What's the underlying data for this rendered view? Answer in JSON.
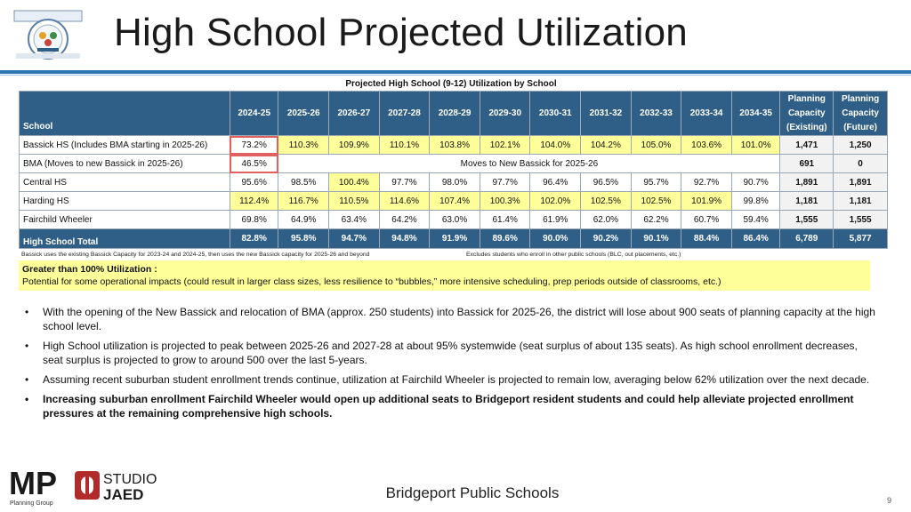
{
  "header": {
    "title": "High School Projected Utilization"
  },
  "table": {
    "caption": "Projected High School (9-12) Utilization by School",
    "school_header": "School",
    "years": [
      "2024-25",
      "2025-26",
      "2026-27",
      "2027-28",
      "2028-29",
      "2029-30",
      "2030-31",
      "2031-32",
      "2032-33",
      "2033-34",
      "2034-35"
    ],
    "cap_existing": [
      "Planning",
      "Capacity",
      "(Existing)"
    ],
    "cap_future": [
      "Planning",
      "Capacity",
      "(Future)"
    ],
    "rows": [
      {
        "name": "Bassick HS (Includes BMA starting in 2025-26)",
        "values": [
          "73.2%",
          "110.3%",
          "109.9%",
          "110.1%",
          "103.8%",
          "102.1%",
          "104.0%",
          "104.2%",
          "105.0%",
          "103.6%",
          "101.0%"
        ],
        "cap_existing": "1,471",
        "cap_future": "1,250"
      },
      {
        "name": "BMA (Moves to new Bassick in 2025-26)",
        "first": "46.5%",
        "merged": "Moves to New Bassick for 2025-26",
        "cap_existing": "691",
        "cap_future": "0"
      },
      {
        "name": "Central HS",
        "values": [
          "95.6%",
          "98.5%",
          "100.4%",
          "97.7%",
          "98.0%",
          "97.7%",
          "96.4%",
          "96.5%",
          "95.7%",
          "92.7%",
          "90.7%"
        ],
        "cap_existing": "1,891",
        "cap_future": "1,891"
      },
      {
        "name": "Harding HS",
        "values": [
          "112.4%",
          "116.7%",
          "110.5%",
          "114.6%",
          "107.4%",
          "100.3%",
          "102.0%",
          "102.5%",
          "102.5%",
          "101.9%",
          "99.8%"
        ],
        "cap_existing": "1,181",
        "cap_future": "1,181"
      },
      {
        "name": "Fairchild Wheeler",
        "values": [
          "69.8%",
          "64.9%",
          "63.4%",
          "64.2%",
          "63.0%",
          "61.4%",
          "61.9%",
          "62.0%",
          "62.2%",
          "60.7%",
          "59.4%"
        ],
        "cap_existing": "1,555",
        "cap_future": "1,555"
      }
    ],
    "total": {
      "name": "High School Total",
      "values": [
        "82.8%",
        "95.8%",
        "94.7%",
        "94.8%",
        "91.9%",
        "89.6%",
        "90.0%",
        "90.2%",
        "90.1%",
        "88.4%",
        "86.4%"
      ],
      "cap_existing": "6,789",
      "cap_future": "5,877"
    }
  },
  "footnotes": {
    "left": "Bassick uses the existing Bassick Capacity for 2023-24 and 2024-25, then uses the new Bassick capacity for 2025-26 and beyond",
    "right": "Excludes students who enroll in other public schools (BLC, out placements, etc.)"
  },
  "callout": {
    "title": "Greater than 100% Utilization :",
    "body": "Potential for some operational impacts (could result in larger class sizes, less resilience to “bubbles,” more intensive scheduling, prep periods outside of classrooms, etc.)"
  },
  "bullets": [
    {
      "marker": "•",
      "text": "With the opening of the New Bassick and relocation of BMA (approx. 250 students) into Bassick for 2025-26, the district will lose about 900 seats of planning capacity at the high school level."
    },
    {
      "marker": "•",
      "text": "High School utilization is projected to peak between 2025-26 and 2027-28 at about 95% systemwide (seat surplus of about 135 seats). As high school enrollment decreases, seat surplus is projected to grow to around 500 over the last 5-years."
    },
    {
      "marker": "•",
      "text": "Assuming recent suburban student enrollment trends continue, utilization at Fairchild Wheeler is projected to remain low, averaging below 62% utilization over the next decade."
    },
    {
      "marker": "•",
      "text": "Increasing suburban enrollment Fairchild Wheeler would open up additional seats to Bridgeport resident students and could help alleviate projected enrollment pressures at the remaining comprehensive high schools."
    }
  ],
  "logos": {
    "mp_letters": "MP",
    "mp_sub": "Planning Group",
    "studio_top": "STUDIO",
    "studio_bottom": "JAED"
  },
  "footer": {
    "org": "Bridgeport Public Schools",
    "page": "9"
  },
  "colors": {
    "header_fill": "#2f5f86",
    "over_100_fill": "#ffff99",
    "rule": "#2e75b6",
    "highlight_border": "#e06060"
  }
}
